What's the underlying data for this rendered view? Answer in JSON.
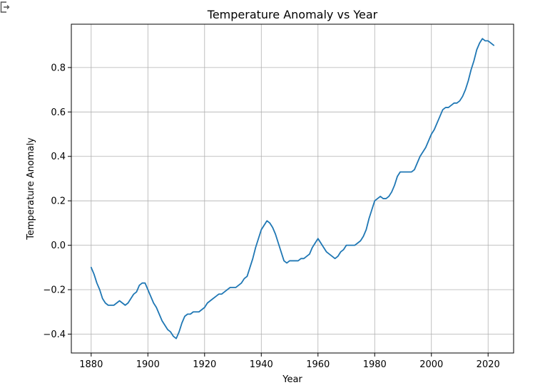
{
  "chart_data": {
    "type": "line",
    "title": "Temperature Anomaly vs Year",
    "xlabel": "Year",
    "ylabel": "Temperature Anomaly",
    "xlim": [
      1873,
      2029
    ],
    "ylim": [
      -0.485,
      0.995
    ],
    "xticks": [
      1880,
      1900,
      1920,
      1940,
      1960,
      1980,
      2000,
      2020
    ],
    "yticks": [
      -0.4,
      -0.2,
      0.0,
      0.2,
      0.4,
      0.6,
      0.8
    ],
    "ytick_labels": [
      "−0.4",
      "−0.2",
      "0.0",
      "0.2",
      "0.4",
      "0.6",
      "0.8"
    ],
    "grid": true,
    "legend": "none",
    "series": [
      {
        "color": "#1f77b4",
        "x": [
          1880,
          1881,
          1882,
          1883,
          1884,
          1885,
          1886,
          1887,
          1888,
          1889,
          1890,
          1891,
          1892,
          1893,
          1894,
          1895,
          1896,
          1897,
          1898,
          1899,
          1900,
          1901,
          1902,
          1903,
          1904,
          1905,
          1906,
          1907,
          1908,
          1909,
          1910,
          1911,
          1912,
          1913,
          1914,
          1915,
          1916,
          1917,
          1918,
          1919,
          1920,
          1921,
          1922,
          1923,
          1924,
          1925,
          1926,
          1927,
          1928,
          1929,
          1930,
          1931,
          1932,
          1933,
          1934,
          1935,
          1936,
          1937,
          1938,
          1939,
          1940,
          1941,
          1942,
          1943,
          1944,
          1945,
          1946,
          1947,
          1948,
          1949,
          1950,
          1951,
          1952,
          1953,
          1954,
          1955,
          1956,
          1957,
          1958,
          1959,
          1960,
          1961,
          1962,
          1963,
          1964,
          1965,
          1966,
          1967,
          1968,
          1969,
          1970,
          1971,
          1972,
          1973,
          1974,
          1975,
          1976,
          1977,
          1978,
          1979,
          1980,
          1981,
          1982,
          1983,
          1984,
          1985,
          1986,
          1987,
          1988,
          1989,
          1990,
          1991,
          1992,
          1993,
          1994,
          1995,
          1996,
          1997,
          1998,
          1999,
          2000,
          2001,
          2002,
          2003,
          2004,
          2005,
          2006,
          2007,
          2008,
          2009,
          2010,
          2011,
          2012,
          2013,
          2014,
          2015,
          2016,
          2017,
          2018,
          2019,
          2020,
          2021,
          2022
        ],
        "values": [
          -0.1,
          -0.13,
          -0.17,
          -0.2,
          -0.24,
          -0.26,
          -0.27,
          -0.27,
          -0.27,
          -0.26,
          -0.25,
          -0.26,
          -0.27,
          -0.26,
          -0.24,
          -0.22,
          -0.21,
          -0.18,
          -0.17,
          -0.17,
          -0.2,
          -0.23,
          -0.26,
          -0.28,
          -0.31,
          -0.34,
          -0.36,
          -0.38,
          -0.39,
          -0.41,
          -0.42,
          -0.39,
          -0.35,
          -0.32,
          -0.31,
          -0.31,
          -0.3,
          -0.3,
          -0.3,
          -0.29,
          -0.28,
          -0.26,
          -0.25,
          -0.24,
          -0.23,
          -0.22,
          -0.22,
          -0.21,
          -0.2,
          -0.19,
          -0.19,
          -0.19,
          -0.18,
          -0.17,
          -0.15,
          -0.14,
          -0.1,
          -0.06,
          -0.01,
          0.03,
          0.07,
          0.09,
          0.11,
          0.1,
          0.08,
          0.05,
          0.01,
          -0.03,
          -0.07,
          -0.08,
          -0.07,
          -0.07,
          -0.07,
          -0.07,
          -0.06,
          -0.06,
          -0.05,
          -0.04,
          -0.01,
          0.01,
          0.03,
          0.01,
          -0.01,
          -0.03,
          -0.04,
          -0.05,
          -0.06,
          -0.05,
          -0.03,
          -0.02,
          0.0,
          0.0,
          0.0,
          0.0,
          0.01,
          0.02,
          0.04,
          0.07,
          0.12,
          0.16,
          0.2,
          0.21,
          0.22,
          0.21,
          0.21,
          0.22,
          0.24,
          0.27,
          0.31,
          0.33,
          0.33,
          0.33,
          0.33,
          0.33,
          0.34,
          0.37,
          0.4,
          0.42,
          0.44,
          0.47,
          0.5,
          0.52,
          0.55,
          0.58,
          0.61,
          0.62,
          0.62,
          0.63,
          0.64,
          0.64,
          0.65,
          0.67,
          0.7,
          0.74,
          0.79,
          0.83,
          0.88,
          0.91,
          0.93,
          0.92,
          0.92,
          0.91,
          0.9
        ]
      }
    ]
  },
  "icons": {
    "corner": "export-icon"
  }
}
